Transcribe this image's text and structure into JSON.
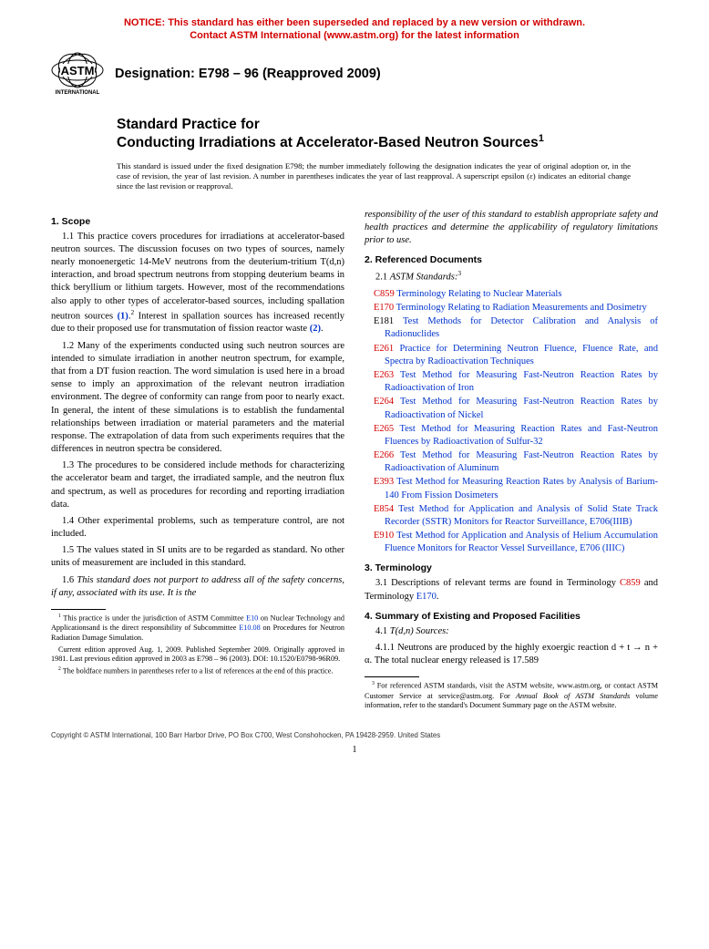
{
  "notice": {
    "line1": "NOTICE: This standard has either been superseded and replaced by a new version or withdrawn.",
    "line2": "Contact ASTM International (www.astm.org) for the latest information"
  },
  "logo": {
    "top": "ASTM",
    "bottom": "INTERNATIONAL"
  },
  "designation": "Designation: E798 – 96 (Reapproved 2009)",
  "title": {
    "line1": "Standard Practice for",
    "line2_pre": "Conducting Irradiations at Accelerator-Based Neutron Sources",
    "sup": "1"
  },
  "issuance": "This standard is issued under the fixed designation E798; the number immediately following the designation indicates the year of original adoption or, in the case of revision, the year of last revision. A number in parentheses indicates the year of last reapproval. A superscript epsilon (ε) indicates an editorial change since the last revision or reapproval.",
  "sec1": {
    "head": "1. Scope",
    "p11a": "1.1 This practice covers procedures for irradiations at accelerator-based neutron sources. The discussion focuses on two types of sources, namely nearly monoenergetic 14-MeV neutrons from the deuterium-tritium T(d,n) interaction, and broad spectrum neutrons from stopping deuterium beams in thick beryllium or lithium targets. However, most of the recommendations also apply to other types of accelerator-based sources, including spallation neutron sources ",
    "p11_ref1": "(1)",
    "p11b": ".",
    "p11_sup": "2",
    "p11c": " Interest in spallation sources has increased recently due to their proposed use for transmutation of fission reactor waste ",
    "p11_ref2": "(2)",
    "p11d": ".",
    "p12": "1.2 Many of the experiments conducted using such neutron sources are intended to simulate irradiation in another neutron spectrum, for example, that from a DT fusion reaction. The word simulation is used here in a broad sense to imply an approximation of the relevant neutron irradiation environment. The degree of conformity can range from poor to nearly exact. In general, the intent of these simulations is to establish the fundamental relationships between irradiation or material parameters and the material response. The extrapolation of data from such experiments requires that the differences in neutron spectra be considered.",
    "p13": "1.3 The procedures to be considered include methods for characterizing the accelerator beam and target, the irradiated sample, and the neutron flux and spectrum, as well as procedures for recording and reporting irradiation data.",
    "p14": "1.4 Other experimental problems, such as temperature control, are not included.",
    "p15": "1.5 The values stated in SI units are to be regarded as standard. No other units of measurement are included in this standard.",
    "p16_a": "1.6 ",
    "p16_b": "This standard does not purport to address all of the safety concerns, if any, associated with its use. It is the",
    "p16_cont": "responsibility of the user of this standard to establish appropriate safety and health practices and determine the applicability of regulatory limitations prior to use."
  },
  "sec2": {
    "head": "2. Referenced Documents",
    "sub_a": "2.1 ",
    "sub_b": "ASTM Standards:",
    "sup": "3",
    "refs": [
      {
        "code": "C859",
        "text": "Terminology Relating to Nuclear Materials",
        "blackcode": false
      },
      {
        "code": "E170",
        "text": "Terminology Relating to Radiation Measurements and Dosimetry",
        "blackcode": false
      },
      {
        "code": "E181",
        "text": "Test Methods for Detector Calibration and Analysis of Radionuclides",
        "blackcode": true
      },
      {
        "code": "E261",
        "text": "Practice for Determining Neutron Fluence, Fluence Rate, and Spectra by Radioactivation Techniques",
        "blackcode": false
      },
      {
        "code": "E263",
        "text": "Test Method for Measuring Fast-Neutron Reaction Rates by Radioactivation of Iron",
        "blackcode": false
      },
      {
        "code": "E264",
        "text": "Test Method for Measuring Fast-Neutron Reaction Rates by Radioactivation of Nickel",
        "blackcode": false
      },
      {
        "code": "E265",
        "text": "Test Method for Measuring Reaction Rates and Fast-Neutron Fluences by Radioactivation of Sulfur-32",
        "blackcode": false
      },
      {
        "code": "E266",
        "text": "Test Method for Measuring Fast-Neutron Reaction Rates by Radioactivation of Aluminum",
        "blackcode": false
      },
      {
        "code": "E393",
        "text": "Test Method for Measuring Reaction Rates by Analysis of Barium-140 From Fission Dosimeters",
        "blackcode": false
      },
      {
        "code": "E854",
        "text": "Test Method for Application and Analysis of Solid State Track Recorder (SSTR) Monitors for Reactor Surveillance, E706(IIIB)",
        "blackcode": false
      },
      {
        "code": "E910",
        "text": "Test Method for Application and Analysis of Helium Accumulation Fluence Monitors for Reactor Vessel Surveillance, E706 (IIIC)",
        "blackcode": false
      }
    ]
  },
  "sec3": {
    "head": "3. Terminology",
    "p_a": "3.1 Descriptions of relevant terms are found in Terminology ",
    "c1": "C859",
    "p_b": " and Terminology ",
    "c2": "E170",
    "p_c": "."
  },
  "sec4": {
    "head": "4. Summary of Existing and Proposed Facilities",
    "sub_a": "4.1 ",
    "sub_b": "T(d,n) Sources:",
    "p411": "4.1.1 Neutrons are produced by the highly exoergic reaction d + t → n + α. The total nuclear energy released is 17.589"
  },
  "footnotes_left": {
    "f1_a": "This practice is under the jurisdiction of ASTM Committee ",
    "f1_l1": "E10",
    "f1_b": " on Nuclear Technology and Applicationsand is the direct responsibility of Subcommittee ",
    "f1_l2": "E10.08",
    "f1_c": " on Procedures for Neutron Radiation Damage Simulation.",
    "f1_d": "Current edition approved Aug. 1, 2009. Published September 2009. Originally approved in 1981. Last previous edition approved in 2003 as E798 – 96 (2003). DOI: 10.1520/E0798-96R09.",
    "f2": "The boldface numbers in parentheses refer to a list of references at the end of this practice."
  },
  "footnotes_right": {
    "f3_a": "For referenced ASTM standards, visit the ASTM website, www.astm.org, or contact ASTM Customer Service at service@astm.org. For ",
    "f3_b": "Annual Book of ASTM Standards",
    "f3_c": " volume information, refer to the standard's Document Summary page on the ASTM website."
  },
  "copyright": "Copyright © ASTM International, 100 Barr Harbor Drive, PO Box C700, West Conshohocken, PA 19428-2959. United States",
  "pagenum": "1"
}
